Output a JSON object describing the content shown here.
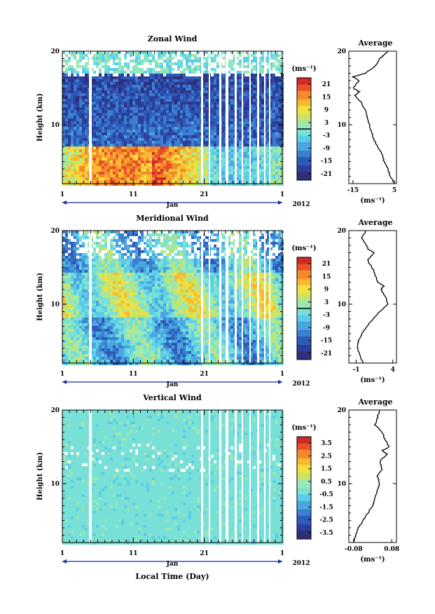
{
  "chart_data": [
    {
      "type": "heatmap",
      "title": "Zonal Wind",
      "ylabel": "Height (km)",
      "xlabel": "",
      "month_label": "Jan",
      "year_label": "2012",
      "unit_label": "(ms⁻¹)",
      "x_range": [
        1,
        32
      ],
      "x_ticks": [
        "1",
        "11",
        "21",
        "1"
      ],
      "y_range": [
        2,
        20
      ],
      "y_ticks": [
        "10",
        "20"
      ],
      "colorbar_ticks": [
        "21",
        "15",
        "9",
        "3",
        "-3",
        "-9",
        "-15",
        "-21"
      ],
      "colorbar_range": [
        -24,
        24
      ],
      "zero_line": 0,
      "average": {
        "title": "Average",
        "x_ticks": [
          "-15",
          "5"
        ],
        "x_range": [
          -17,
          6
        ],
        "xlabel": "(ms⁻¹)",
        "profile": [
          [
            2,
            5
          ],
          [
            3,
            3
          ],
          [
            4,
            2
          ],
          [
            5,
            0
          ],
          [
            6,
            -1
          ],
          [
            7,
            -3
          ],
          [
            8,
            -5
          ],
          [
            9,
            -6
          ],
          [
            10,
            -7
          ],
          [
            11,
            -8
          ],
          [
            12,
            -9
          ],
          [
            13,
            -11
          ],
          [
            14,
            -14
          ],
          [
            14.5,
            -12
          ],
          [
            15,
            -15
          ],
          [
            16,
            -12
          ],
          [
            16.5,
            -15
          ],
          [
            17,
            -9
          ],
          [
            18,
            -4
          ],
          [
            19,
            -2
          ],
          [
            19.5,
            0
          ],
          [
            20,
            2
          ]
        ]
      }
    },
    {
      "type": "heatmap",
      "title": "Meridional Wind",
      "ylabel": "Height (km)",
      "xlabel": "",
      "month_label": "Jan",
      "year_label": "2012",
      "unit_label": "(ms⁻¹)",
      "x_range": [
        1,
        32
      ],
      "x_ticks": [
        "1",
        "11",
        "21",
        "1"
      ],
      "y_range": [
        2,
        20
      ],
      "y_ticks": [
        "10",
        "20"
      ],
      "colorbar_ticks": [
        "21",
        "15",
        "9",
        "3",
        "-3",
        "-9",
        "-15",
        "-21"
      ],
      "colorbar_range": [
        -24,
        24
      ],
      "zero_line": 0,
      "average": {
        "title": "Average",
        "x_ticks": [
          "-1",
          "4"
        ],
        "x_range": [
          -2,
          4.5
        ],
        "xlabel": "(ms⁻¹)",
        "profile": [
          [
            2,
            0
          ],
          [
            3,
            -0.5
          ],
          [
            4,
            -0.8
          ],
          [
            5,
            -0.7
          ],
          [
            6,
            -0.2
          ],
          [
            7,
            0.5
          ],
          [
            8,
            1.3
          ],
          [
            9,
            2.2
          ],
          [
            10,
            3.4
          ],
          [
            11,
            3.0
          ],
          [
            12,
            2.4
          ],
          [
            12.5,
            2.8
          ],
          [
            13,
            2.0
          ],
          [
            14,
            1.6
          ],
          [
            15,
            1.2
          ],
          [
            16,
            0.5
          ],
          [
            17,
            1.5
          ],
          [
            17.5,
            0.6
          ],
          [
            18,
            0.4
          ],
          [
            19,
            -0.2
          ],
          [
            20,
            0.3
          ]
        ]
      }
    },
    {
      "type": "heatmap",
      "title": "Vertical Wind",
      "ylabel": "Height (km)",
      "xlabel": "Local Time (Day)",
      "month_label": "Jan",
      "year_label": "2012",
      "unit_label": "(ms⁻¹)",
      "x_range": [
        1,
        32
      ],
      "x_ticks": [
        "1",
        "11",
        "21",
        "1"
      ],
      "y_range": [
        2,
        20
      ],
      "y_ticks": [
        "10",
        "20"
      ],
      "colorbar_ticks": [
        "3.5",
        "2.5",
        "1.5",
        "0.5",
        "-0.5",
        "-1.5",
        "-2.5",
        "-3.5"
      ],
      "colorbar_range": [
        -4,
        4
      ],
      "zero_line": null,
      "average": {
        "title": "Average",
        "x_ticks": [
          "-0.08",
          "0.08"
        ],
        "x_range": [
          -0.1,
          0.1
        ],
        "xlabel": "(ms⁻¹)",
        "profile": [
          [
            2,
            -0.08
          ],
          [
            3,
            -0.07
          ],
          [
            4,
            -0.06
          ],
          [
            5,
            -0.04
          ],
          [
            6,
            -0.02
          ],
          [
            7,
            0.0
          ],
          [
            8,
            0.01
          ],
          [
            9,
            0.02
          ],
          [
            10,
            0.03
          ],
          [
            11,
            0.02
          ],
          [
            12,
            0.04
          ],
          [
            13,
            0.03
          ],
          [
            14,
            0.06
          ],
          [
            14.5,
            0.04
          ],
          [
            15,
            0.07
          ],
          [
            16,
            0.05
          ],
          [
            17,
            0.04
          ],
          [
            18,
            0.01
          ],
          [
            19,
            0.02
          ],
          [
            20,
            0.03
          ]
        ]
      }
    }
  ],
  "colors": {
    "colormap": [
      "#2e2f7a",
      "#2b3f9a",
      "#2f5ab8",
      "#3a7fd2",
      "#4ba6e0",
      "#5bcdea",
      "#78e0d6",
      "#9ae8b2",
      "#c8e468",
      "#f0e040",
      "#f8b830",
      "#f48a2c",
      "#e8502a",
      "#d02a26"
    ],
    "contour": "#000000"
  }
}
